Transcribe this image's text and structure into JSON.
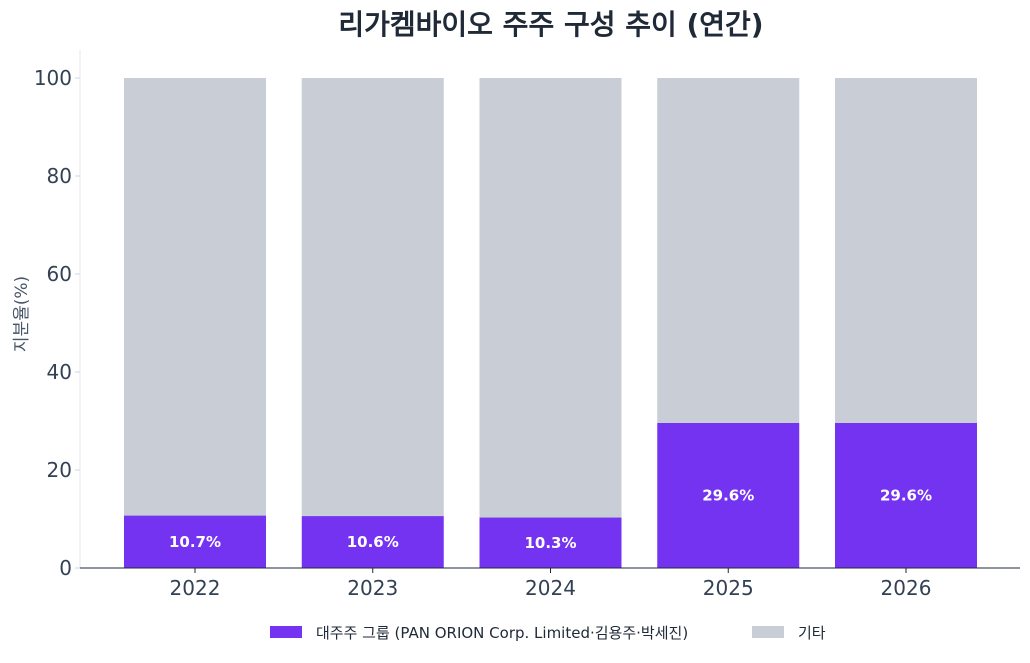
{
  "chart_data": {
    "type": "bar",
    "stacked": true,
    "title": "리가켐바이오 주주 구성 추이 (연간)",
    "xlabel": "",
    "ylabel": "지분율(%)",
    "categories": [
      "2022",
      "2023",
      "2024",
      "2025",
      "2026"
    ],
    "series": [
      {
        "name": "대주주 그룹 (PAN ORION Corp. Limited·김용주·박세진)",
        "color": "#7433f0",
        "values": [
          10.7,
          10.6,
          10.3,
          29.6,
          29.6
        ],
        "labels": [
          "10.7%",
          "10.6%",
          "10.3%",
          "29.6%",
          "29.6%"
        ]
      },
      {
        "name": "기타",
        "color": "#c8cdd6",
        "values": [
          89.3,
          89.4,
          89.7,
          70.4,
          70.4
        ]
      }
    ],
    "ylim": [
      0,
      100
    ],
    "yticks": [
      0,
      20,
      40,
      60,
      80,
      100
    ],
    "grid": false,
    "legend_position": "bottom"
  }
}
